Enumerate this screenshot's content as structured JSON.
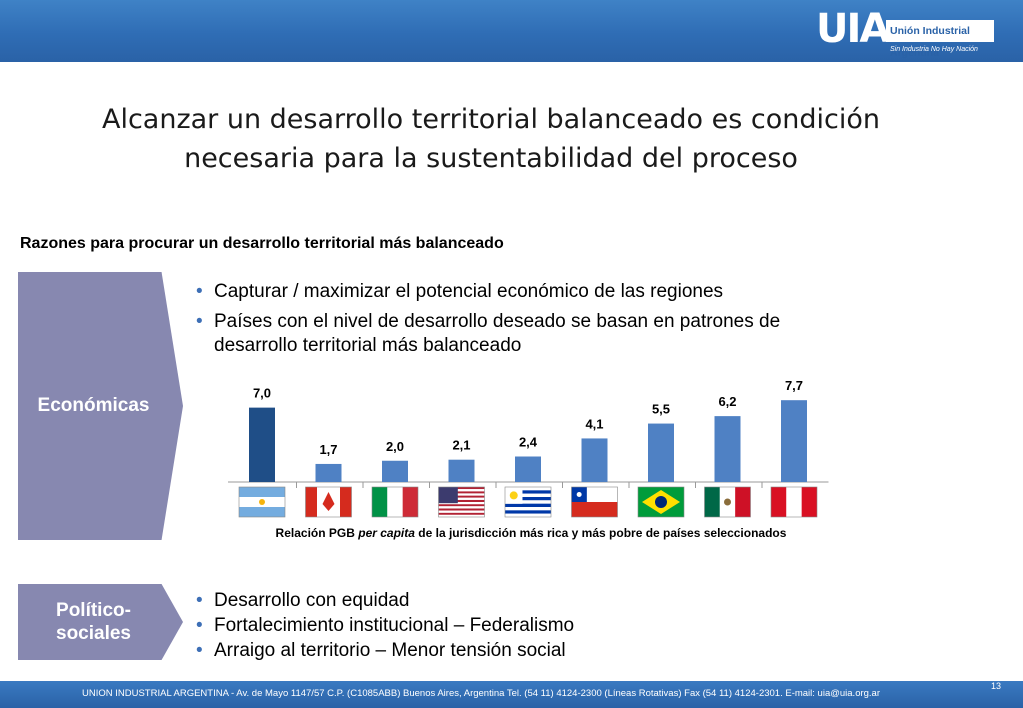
{
  "header": {
    "logo_mark": "UIA",
    "logo_name": "Unión Industrial Argentina",
    "logo_tagline": "Sin Industria No Hay Nación"
  },
  "title_line1": "Alcanzar un desarrollo territorial balanceado es condición",
  "title_line2": "necesaria para la sustentabilidad del proceso",
  "subtitle": "Razones para procurar un desarrollo territorial más balanceado",
  "economicas": {
    "label": "Económicas",
    "bullets": [
      "Capturar / maximizar el potencial económico de las regiones",
      "Países con el nivel de desarrollo deseado se basan en patrones de desarrollo territorial más balanceado"
    ]
  },
  "politico": {
    "label_line1": "Político-",
    "label_line2": "sociales",
    "bullets": [
      "Desarrollo con equidad",
      "Fortalecimiento institucional – Federalismo",
      "Arraigo al territorio – Menor tensión social"
    ]
  },
  "chart_data": {
    "type": "bar",
    "categories": [
      "argentina-flag",
      "canada-flag",
      "italy-flag",
      "usa-flag",
      "uruguay-flag",
      "chile-flag",
      "brazil-flag",
      "mexico-flag",
      "peru-flag"
    ],
    "values": [
      7.0,
      1.7,
      2.0,
      2.1,
      2.4,
      4.1,
      5.5,
      6.2,
      7.7
    ],
    "labels": [
      "7,0",
      "1,7",
      "2,0",
      "2,1",
      "2,4",
      "4,1",
      "5,5",
      "6,2",
      "7,7"
    ],
    "colors": [
      "#1f4e87",
      "#4f81c4",
      "#4f81c4",
      "#4f81c4",
      "#4f81c4",
      "#4f81c4",
      "#4f81c4",
      "#4f81c4",
      "#4f81c4"
    ],
    "ylim": [
      0,
      8.0
    ],
    "grid": false,
    "legend": "none"
  },
  "caption": {
    "pre": "Relación PGB ",
    "italic": "per capita",
    "post": " de la jurisdicción más rica y más pobre de países seleccionados"
  },
  "footer": {
    "text": "UNION INDUSTRIAL ARGENTINA -  Av. de Mayo 1147/57  C.P. (C1085ABB)  Buenos Aires, Argentina Tel. (54 11) 4124-2300   (Líneas Rotativas)  Fax (54 11) 4124-2301.   E-mail: uia@uia.org.ar",
    "page_number": "13"
  }
}
